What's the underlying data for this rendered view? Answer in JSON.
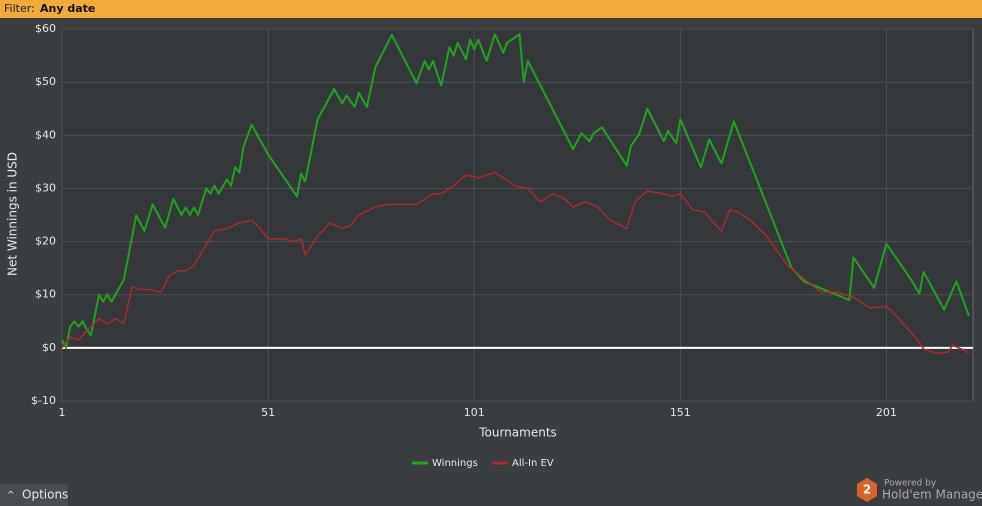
{
  "filter_bar": {
    "label": "Filter:",
    "value": "Any date"
  },
  "options": "Options",
  "branding": {
    "logo": "2",
    "powered_by": "Powered by",
    "name": "Hold'em Manager"
  },
  "chart_data": {
    "type": "line",
    "xlabel": "Tournaments",
    "ylabel": "Net Winnings in USD",
    "xlim": [
      1,
      222
    ],
    "xticks": [
      1,
      51,
      101,
      151,
      201
    ],
    "ylim": [
      -10,
      60
    ],
    "yticks": [
      {
        "value": -10,
        "label": "$-10"
      },
      {
        "value": 0,
        "label": "$0"
      },
      {
        "value": 10,
        "label": "$10"
      },
      {
        "value": 20,
        "label": "$20"
      },
      {
        "value": 30,
        "label": "$30"
      },
      {
        "value": 40,
        "label": "$40"
      },
      {
        "value": 50,
        "label": "$50"
      },
      {
        "value": 60,
        "label": "$60"
      }
    ],
    "grid": true,
    "zero_line": true,
    "legend": "bottom",
    "series": [
      {
        "name": "Winnings",
        "color": "#22a022",
        "x": [
          1,
          2,
          3,
          4,
          5,
          6,
          7,
          8,
          10,
          11,
          12,
          13,
          16,
          19,
          21,
          23,
          26,
          28,
          30,
          31,
          32,
          33,
          34,
          36,
          37,
          38,
          39,
          41,
          42,
          43,
          44,
          45,
          47,
          51,
          58,
          59,
          60,
          63,
          67,
          69,
          70,
          72,
          73,
          75,
          77,
          81,
          87,
          89,
          90,
          91,
          93,
          95,
          96,
          97,
          99,
          100,
          101,
          102,
          104,
          106,
          107,
          108,
          109,
          112,
          113,
          114,
          125,
          127,
          129,
          130,
          132,
          138,
          139,
          141,
          143,
          147,
          148,
          150,
          151,
          156,
          158,
          161,
          164,
          178,
          181,
          192,
          193,
          198,
          201,
          207,
          209,
          210,
          215,
          218,
          221
        ],
        "values": [
          1.5,
          0,
          4,
          5,
          4,
          5,
          3.5,
          2.3,
          10,
          8.7,
          10,
          8.7,
          12.8,
          24.9,
          22,
          27,
          22.6,
          28,
          25,
          26.4,
          25,
          26.4,
          25,
          30,
          29,
          30.5,
          29,
          31.7,
          30.5,
          34,
          33,
          37.7,
          42,
          36.4,
          28.5,
          32.8,
          31.3,
          43,
          48.7,
          46,
          47.5,
          45.3,
          48,
          45.3,
          52.8,
          58.9,
          49.8,
          54,
          52.4,
          54,
          49.4,
          56.6,
          55,
          57.4,
          54.3,
          58,
          56.2,
          58,
          54,
          59,
          57.4,
          55.5,
          57.4,
          59,
          50,
          54,
          37.4,
          40.4,
          38.9,
          40.4,
          41.5,
          34.3,
          38,
          40.2,
          45,
          38.9,
          40.8,
          38.5,
          43,
          34,
          39.2,
          34.7,
          42.6,
          15,
          12.5,
          9,
          17,
          11.3,
          19.6,
          12.8,
          10.2,
          14.3,
          7.2,
          12.5,
          6
        ]
      },
      {
        "name": "All-In EV",
        "color": "#a82c2a",
        "x": [
          1,
          3,
          5,
          8,
          10,
          12,
          14,
          16,
          18,
          20,
          22,
          25,
          27,
          29,
          31,
          33,
          36,
          38,
          41,
          44,
          47,
          49,
          51,
          55,
          57,
          59,
          60,
          63,
          66,
          69,
          71,
          73,
          77,
          80,
          84,
          87,
          91,
          93,
          96,
          99,
          102,
          106,
          108,
          111,
          114,
          117,
          120,
          123,
          125,
          128,
          131,
          134,
          138,
          140,
          143,
          147,
          149,
          151,
          154,
          157,
          158,
          161,
          163,
          165,
          168,
          172,
          177,
          181,
          185,
          189,
          193,
          197,
          201,
          204,
          208,
          210,
          213,
          216,
          217,
          220,
          221
        ],
        "values": [
          0,
          2,
          1.5,
          4,
          5.5,
          4.5,
          5.5,
          4.5,
          11.5,
          11,
          11,
          10.5,
          13.5,
          14.5,
          14.5,
          15.5,
          19.5,
          22,
          22.5,
          23.5,
          24,
          22.5,
          20.5,
          20.5,
          20,
          20.5,
          17.5,
          21,
          23.5,
          22.5,
          23,
          25,
          26.5,
          27,
          27,
          27,
          29,
          29,
          30.5,
          32.5,
          32,
          33,
          32,
          30.5,
          30,
          27.5,
          29,
          28,
          26.5,
          27.5,
          26.5,
          24,
          22.5,
          27.5,
          29.5,
          29,
          28.5,
          29,
          26,
          25.5,
          24.5,
          22,
          26,
          25.5,
          24,
          21,
          15.5,
          13,
          10.5,
          10.5,
          9.5,
          7.5,
          7.8,
          5.5,
          2,
          -0.2,
          -1,
          -0.8,
          0.5,
          -0.5,
          -1
        ]
      }
    ]
  }
}
